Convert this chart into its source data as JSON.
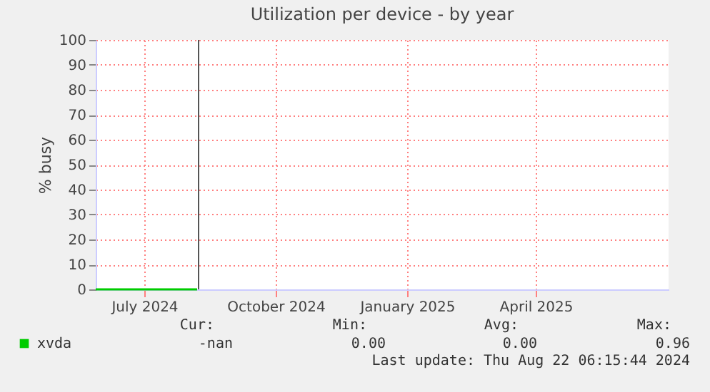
{
  "chart_data": {
    "type": "line",
    "title": "Utilization per device - by year",
    "ylabel": "% busy",
    "x": [
      "2024-06-11",
      "2024-06-21",
      "2024-07-01",
      "2024-07-11",
      "2024-07-21",
      "2024-07-31",
      "2024-08-10",
      "2024-08-21"
    ],
    "series": [
      {
        "name": "xvda",
        "color": "#00cc00",
        "values": [
          0,
          0,
          0,
          0,
          0,
          0,
          0,
          0
        ]
      }
    ],
    "xlim": [
      "2024-06-11",
      "2025-07-17"
    ],
    "xticks": [
      {
        "value": "2024-07-15",
        "label": "July 2024"
      },
      {
        "value": "2024-10-15",
        "label": "October 2024"
      },
      {
        "value": "2025-01-15",
        "label": "January 2025"
      },
      {
        "value": "2025-04-15",
        "label": "April 2025"
      }
    ],
    "ylim": [
      0,
      100
    ],
    "yticks": [
      0,
      10,
      20,
      30,
      40,
      50,
      60,
      70,
      80,
      90,
      100
    ],
    "grid": true,
    "legend": "bottom left",
    "ref_lines": [
      {
        "axis": "x",
        "value": "2024-08-22",
        "color": "#555555"
      }
    ],
    "annotations": [
      "Cur:",
      "Min:",
      "Avg:",
      "Max:",
      "-nan",
      "0.00",
      "0.00",
      "0.96",
      "Last update: Thu Aug 22 06:15:44 2024"
    ]
  }
}
